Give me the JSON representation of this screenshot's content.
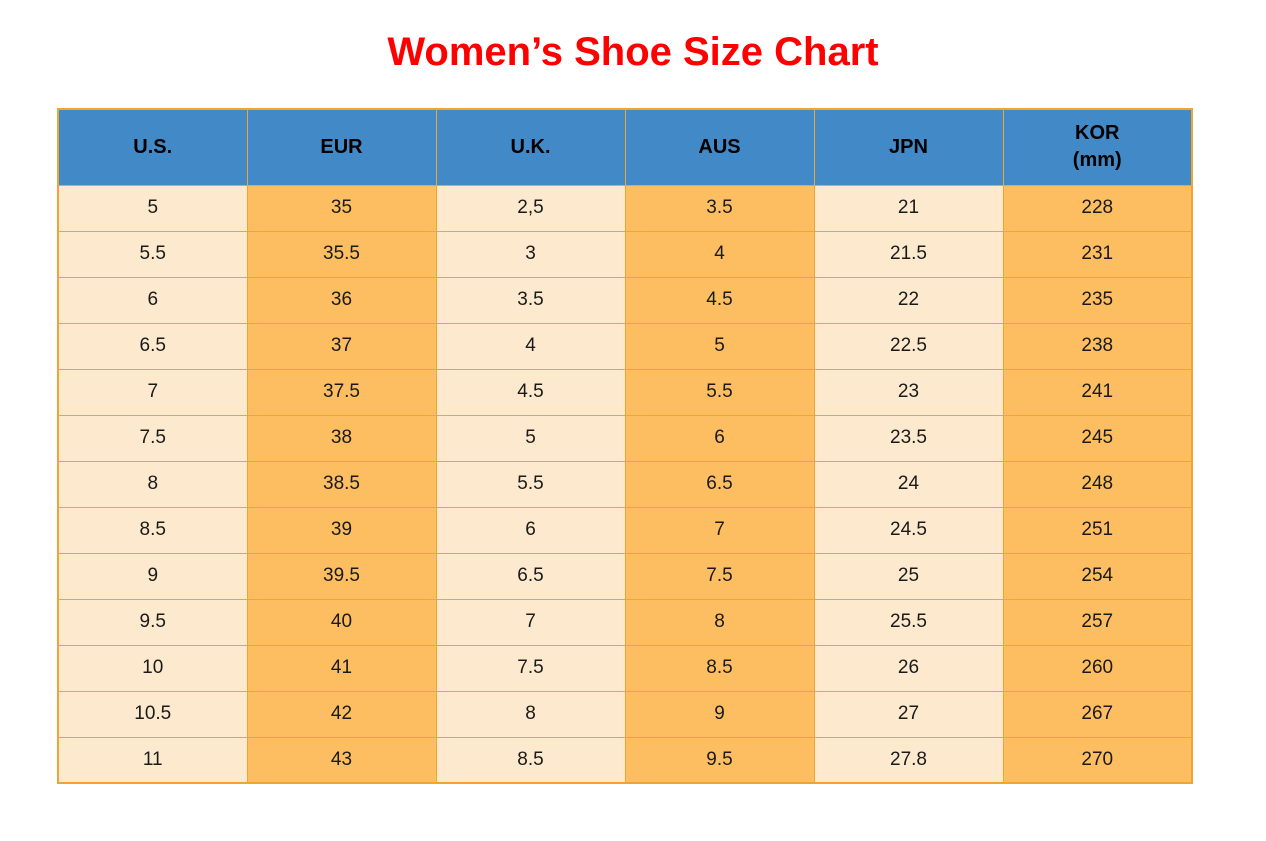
{
  "title": {
    "text": "Women’s Shoe Size Chart"
  },
  "colors": {
    "title": "#FF0000",
    "header_bg": "#4289C7",
    "header_text": "#000000",
    "cell_light": "#FDE9CD",
    "cell_orange": "#FDBE62",
    "border": "#F2A431",
    "cell_text": "#1A1A1A",
    "page_bg": "#FFFFFF"
  },
  "table": {
    "headers": [
      {
        "label": "U.S.",
        "sub": ""
      },
      {
        "label": "EUR",
        "sub": ""
      },
      {
        "label": "U.K.",
        "sub": ""
      },
      {
        "label": "AUS",
        "sub": ""
      },
      {
        "label": "JPN",
        "sub": ""
      },
      {
        "label": "KOR",
        "sub": "(mm)"
      }
    ],
    "rows": [
      [
        "5",
        "35",
        "2,5",
        "3.5",
        "21",
        "228"
      ],
      [
        "5.5",
        "35.5",
        "3",
        "4",
        "21.5",
        "231"
      ],
      [
        "6",
        "36",
        "3.5",
        "4.5",
        "22",
        "235"
      ],
      [
        "6.5",
        "37",
        "4",
        "5",
        "22.5",
        "238"
      ],
      [
        "7",
        "37.5",
        "4.5",
        "5.5",
        "23",
        "241"
      ],
      [
        "7.5",
        "38",
        "5",
        "6",
        "23.5",
        "245"
      ],
      [
        "8",
        "38.5",
        "5.5",
        "6.5",
        "24",
        "248"
      ],
      [
        "8.5",
        "39",
        "6",
        "7",
        "24.5",
        "251"
      ],
      [
        "9",
        "39.5",
        "6.5",
        "7.5",
        "25",
        "254"
      ],
      [
        "9.5",
        "40",
        "7",
        "8",
        "25.5",
        "257"
      ],
      [
        "10",
        "41",
        "7.5",
        "8.5",
        "26",
        "260"
      ],
      [
        "10.5",
        "42",
        "8",
        "9",
        "27",
        "267"
      ],
      [
        "11",
        "43",
        "8.5",
        "9.5",
        "27.8",
        "270"
      ]
    ]
  },
  "chart_data": {
    "type": "table",
    "title": "Women’s Shoe Size Chart",
    "columns": [
      "U.S.",
      "EUR",
      "U.K.",
      "AUS",
      "JPN",
      "KOR (mm)"
    ],
    "rows": [
      [
        "5",
        "35",
        "2,5",
        "3.5",
        "21",
        "228"
      ],
      [
        "5.5",
        "35.5",
        "3",
        "4",
        "21.5",
        "231"
      ],
      [
        "6",
        "36",
        "3.5",
        "4.5",
        "22",
        "235"
      ],
      [
        "6.5",
        "37",
        "4",
        "5",
        "22.5",
        "238"
      ],
      [
        "7",
        "37.5",
        "4.5",
        "5.5",
        "23",
        "241"
      ],
      [
        "7.5",
        "38",
        "5",
        "6",
        "23.5",
        "245"
      ],
      [
        "8",
        "38.5",
        "5.5",
        "6.5",
        "24",
        "248"
      ],
      [
        "8.5",
        "39",
        "6",
        "7",
        "24.5",
        "251"
      ],
      [
        "9",
        "39.5",
        "6.5",
        "7.5",
        "25",
        "254"
      ],
      [
        "9.5",
        "40",
        "7",
        "8",
        "25.5",
        "257"
      ],
      [
        "10",
        "41",
        "7.5",
        "8.5",
        "26",
        "260"
      ],
      [
        "10.5",
        "42",
        "8",
        "9",
        "27",
        "267"
      ],
      [
        "11",
        "43",
        "8.5",
        "9.5",
        "27.8",
        "270"
      ]
    ],
    "layout_hints": {
      "column_stripes": [
        "light",
        "orange",
        "light",
        "orange",
        "light",
        "orange"
      ],
      "header_style": "blue-filled, bold black text",
      "title_style": "red bold, centered above table"
    }
  }
}
